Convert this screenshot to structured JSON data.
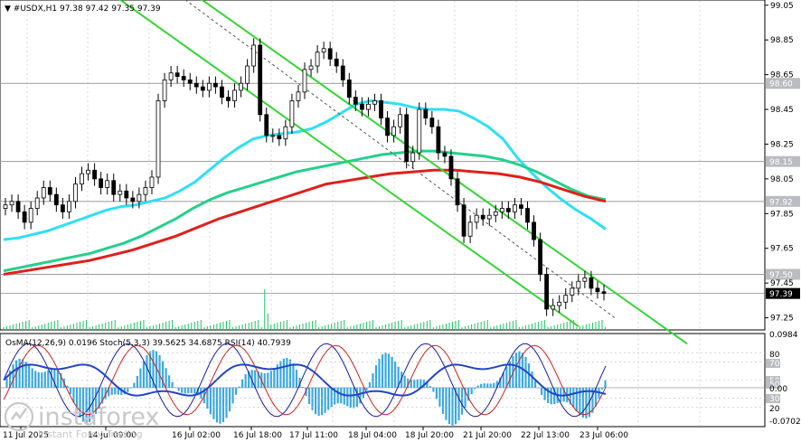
{
  "header": {
    "symbol": "#USDX,H1",
    "ohlc": "97.38 97.42 97.35 97.39"
  },
  "price_axis": {
    "ticks": [
      "99.05",
      "98.85",
      "98.65",
      "98.45",
      "98.25",
      "98.05",
      "97.85",
      "97.65",
      "97.45",
      "97.25"
    ],
    "tick_values": [
      99.05,
      98.85,
      98.65,
      98.45,
      98.25,
      98.05,
      97.85,
      97.65,
      97.45,
      97.25
    ],
    "levels": [
      {
        "label": "98.60",
        "value": 98.6,
        "kind": "level"
      },
      {
        "label": "98.15",
        "value": 98.15,
        "kind": "level"
      },
      {
        "label": "97.92",
        "value": 97.92,
        "kind": "level"
      },
      {
        "label": "97.50",
        "value": 97.5,
        "kind": "level"
      },
      {
        "label": "97.39",
        "value": 97.39,
        "kind": "current"
      }
    ]
  },
  "indicator_header": "OsMA(12,26,9) 0.0196  Stoch(5,3,3) 39.5625 34.6875  RSI(14) 40.7939",
  "indicator_axis": {
    "right_labels": [
      "0.0984",
      "80",
      "70",
      "50",
      "50",
      "0.00",
      "30",
      "20",
      "-0.0702"
    ],
    "right_values": [
      0.0984,
      80,
      70,
      50,
      50,
      0.0,
      30,
      20,
      -0.0702
    ]
  },
  "time_axis": [
    "11 Jul 2025",
    "14 Jul 09:00",
    "16 Jul 02:00",
    "16 Jul 18:00",
    "17 Jul 11:00",
    "18 Jul 04:00",
    "18 Jul 20:00",
    "21 Jul 20:00",
    "22 Jul 13:00",
    "23 Jul 06:00"
  ],
  "watermark": {
    "brand": "instaforex",
    "tagline": "Instant Forex Trading"
  },
  "colors": {
    "up": "#000000",
    "down": "#000000",
    "ema_fast": "#2ee0f5",
    "ema_mid": "#22d18a",
    "ema_slow": "#e0201b",
    "channel": "#33d633",
    "level_tag": "#b9bcc0",
    "current_tag": "#000000",
    "osma": "#3aa8e0",
    "stoch_main": "#1a1aa0",
    "stoch_signal": "#cc2222",
    "rsi": "#2244cc"
  },
  "chart_data": {
    "type": "candlestick",
    "title": "#USDX,H1",
    "ylim": [
      97.18,
      99.08
    ],
    "close": [
      97.9,
      97.92,
      97.86,
      97.8,
      97.88,
      97.94,
      98.0,
      97.96,
      97.9,
      97.86,
      97.92,
      98.02,
      98.08,
      98.1,
      98.05,
      98.0,
      98.04,
      97.96,
      97.98,
      97.94,
      97.92,
      97.96,
      98.0,
      98.06,
      98.5,
      98.62,
      98.66,
      98.64,
      98.62,
      98.6,
      98.58,
      98.56,
      98.6,
      98.58,
      98.52,
      98.5,
      98.56,
      98.6,
      98.7,
      98.82,
      98.42,
      98.3,
      98.3,
      98.28,
      98.35,
      98.5,
      98.55,
      98.68,
      98.7,
      98.78,
      98.8,
      98.74,
      98.7,
      98.62,
      98.52,
      98.48,
      98.45,
      98.48,
      98.5,
      98.4,
      98.3,
      98.35,
      98.42,
      98.15,
      98.2,
      98.45,
      98.4,
      98.35,
      98.2,
      98.18,
      98.05,
      97.9,
      97.72,
      97.8,
      97.84,
      97.82,
      97.84,
      97.86,
      97.88,
      97.86,
      97.9,
      97.88,
      97.8,
      97.7,
      97.5,
      97.3,
      97.32,
      97.34,
      97.38,
      97.42,
      97.46,
      97.48,
      97.42,
      97.4,
      97.39
    ],
    "ema_fast": [
      97.7,
      97.71,
      97.73,
      97.75,
      97.78,
      97.81,
      97.84,
      97.87,
      97.89,
      97.9,
      97.92,
      97.94,
      97.98,
      98.03,
      98.1,
      98.17,
      98.23,
      98.28,
      98.3,
      98.31,
      98.32,
      98.34,
      98.38,
      98.43,
      98.48,
      98.5,
      98.49,
      98.48,
      98.46,
      98.45,
      98.45,
      98.44,
      98.4,
      98.35,
      98.28,
      98.17,
      98.08,
      98.0,
      97.93,
      97.87,
      97.82,
      97.76
    ],
    "ema_mid": [
      97.52,
      97.54,
      97.56,
      97.58,
      97.6,
      97.62,
      97.65,
      97.68,
      97.72,
      97.77,
      97.82,
      97.88,
      97.93,
      97.97,
      98.0,
      98.03,
      98.06,
      98.09,
      98.11,
      98.13,
      98.15,
      98.17,
      98.19,
      98.2,
      98.21,
      98.21,
      98.2,
      98.19,
      98.18,
      98.16,
      98.13,
      98.09,
      98.04,
      97.99,
      97.95,
      97.93
    ],
    "ema_slow": [
      97.5,
      97.52,
      97.54,
      97.56,
      97.58,
      97.61,
      97.64,
      97.68,
      97.72,
      97.77,
      97.82,
      97.86,
      97.9,
      97.94,
      97.98,
      98.02,
      98.04,
      98.06,
      98.08,
      98.09,
      98.1,
      98.1,
      98.09,
      98.08,
      98.06,
      98.03,
      97.99,
      97.95,
      97.92
    ],
    "channel_upper": [
      [
        110,
        99.5
      ],
      [
        760,
        97.1
      ]
    ],
    "channel_lower": [
      [
        20,
        99.5
      ],
      [
        640,
        97.2
      ]
    ],
    "channel_mid": [
      [
        200,
        99.1
      ],
      [
        680,
        97.25
      ]
    ]
  }
}
